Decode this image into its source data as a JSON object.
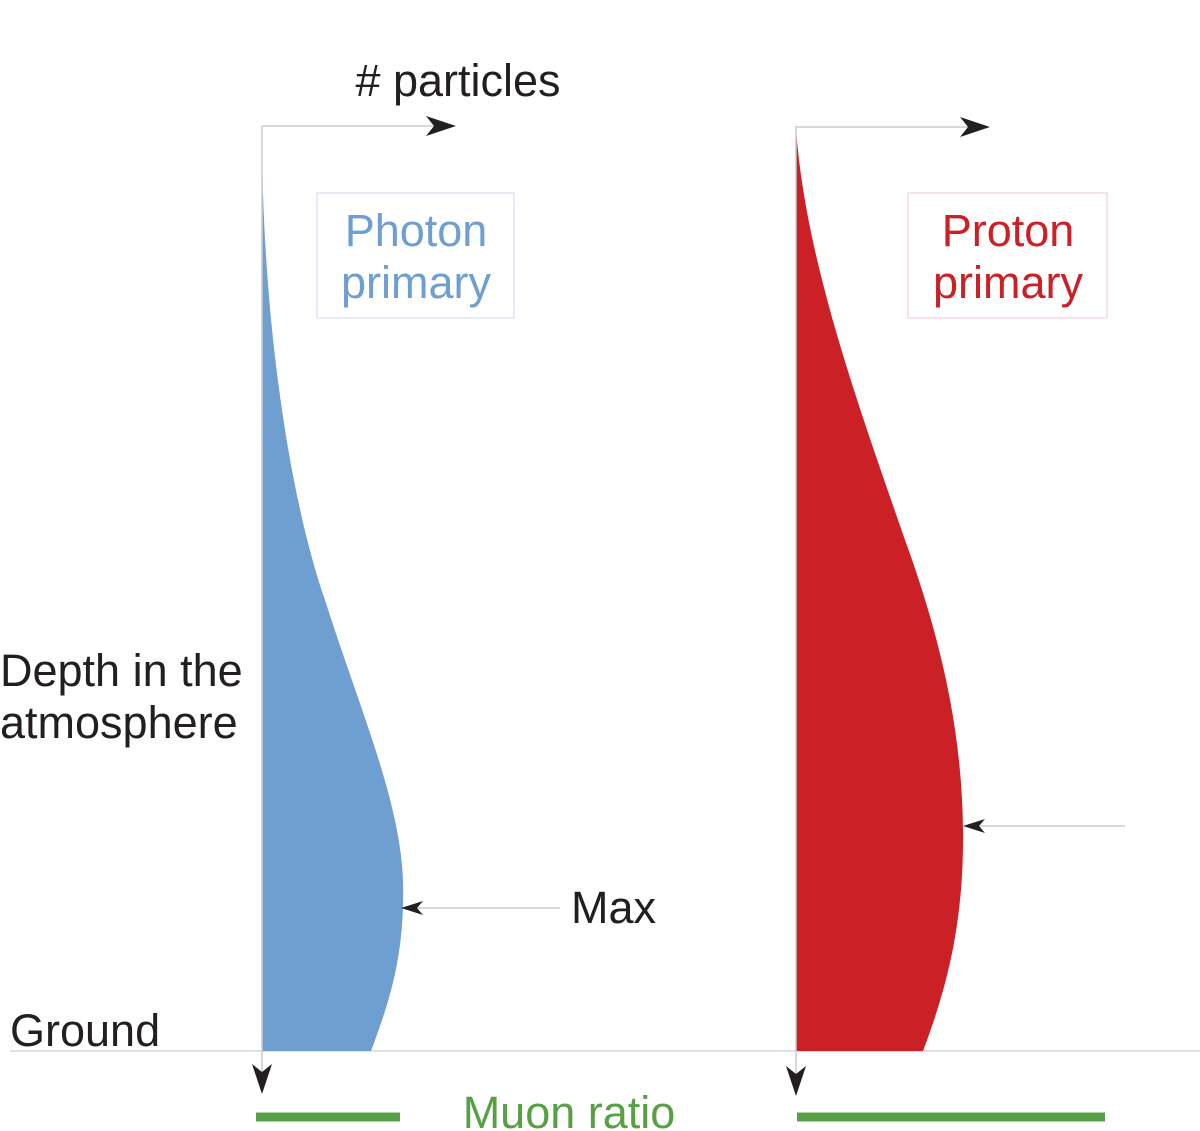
{
  "diagram": {
    "y_axis_label_line1": "Depth in the",
    "y_axis_label_line2": "atmosphere",
    "x_axis_label": "# particles",
    "ground_label": "Ground",
    "max_label": "Max",
    "muon_ratio_label": "Muon ratio",
    "photon": {
      "title_line1": "Photon",
      "title_line2": "primary",
      "color": "#6f9fd0"
    },
    "proton": {
      "title_line1": "Proton",
      "title_line2": "primary",
      "color": "#cc2027"
    },
    "colors": {
      "text": "#231f20",
      "muon_bar": "#58a046",
      "axis_line": "#c8ccd2",
      "arrow": "#231f20"
    }
  }
}
